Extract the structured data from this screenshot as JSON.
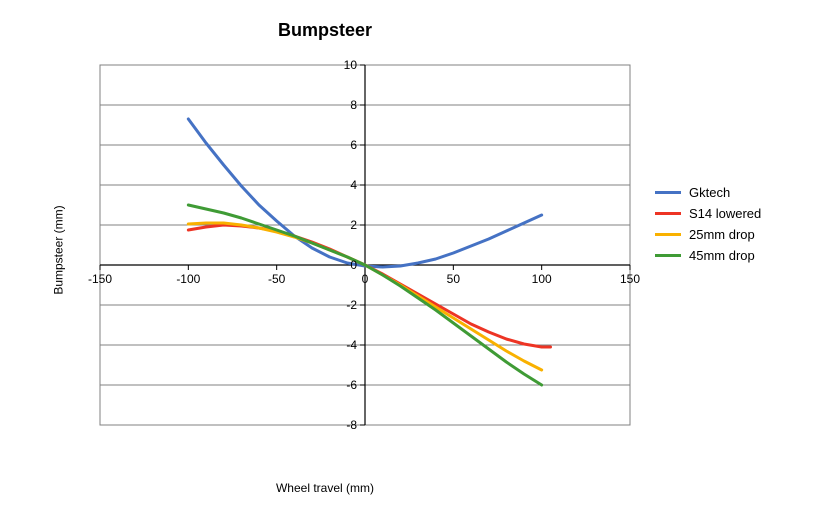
{
  "chart": {
    "type": "line",
    "title": "Bumpsteer",
    "title_fontsize": 18,
    "xlabel": "Wheel travel (mm)",
    "ylabel": "Bumpsteer (mm)",
    "label_fontsize": 12,
    "background_color": "#ffffff",
    "plot_border_color": "#808080",
    "grid_color": "#808080",
    "grid_width": 1,
    "axis_color": "#000000",
    "tick_fontsize": 12,
    "xlim": [
      -150,
      150
    ],
    "ylim": [
      -8,
      10
    ],
    "xticks": [
      -150,
      -100,
      -50,
      0,
      50,
      100,
      150
    ],
    "yticks": [
      -8,
      -6,
      -4,
      -2,
      0,
      2,
      4,
      6,
      8,
      10
    ],
    "line_width": 3,
    "series": [
      {
        "name": "Gktech",
        "color": "#4572c4",
        "points": [
          [
            -100,
            7.3
          ],
          [
            -90,
            6.1
          ],
          [
            -80,
            5.0
          ],
          [
            -70,
            3.95
          ],
          [
            -60,
            3.0
          ],
          [
            -50,
            2.2
          ],
          [
            -40,
            1.45
          ],
          [
            -30,
            0.85
          ],
          [
            -20,
            0.4
          ],
          [
            -10,
            0.1
          ],
          [
            0,
            -0.05
          ],
          [
            10,
            -0.1
          ],
          [
            20,
            -0.05
          ],
          [
            30,
            0.1
          ],
          [
            40,
            0.3
          ],
          [
            50,
            0.6
          ],
          [
            60,
            0.95
          ],
          [
            70,
            1.3
          ],
          [
            80,
            1.7
          ],
          [
            90,
            2.1
          ],
          [
            100,
            2.5
          ]
        ]
      },
      {
        "name": "S14 lowered",
        "color": "#ed3424",
        "points": [
          [
            -100,
            1.75
          ],
          [
            -90,
            1.9
          ],
          [
            -80,
            2.0
          ],
          [
            -70,
            1.95
          ],
          [
            -60,
            1.85
          ],
          [
            -50,
            1.7
          ],
          [
            -40,
            1.45
          ],
          [
            -30,
            1.15
          ],
          [
            -20,
            0.8
          ],
          [
            -10,
            0.4
          ],
          [
            0,
            0.0
          ],
          [
            10,
            -0.45
          ],
          [
            20,
            -0.95
          ],
          [
            30,
            -1.45
          ],
          [
            40,
            -1.95
          ],
          [
            50,
            -2.45
          ],
          [
            60,
            -2.95
          ],
          [
            70,
            -3.35
          ],
          [
            80,
            -3.7
          ],
          [
            90,
            -3.95
          ],
          [
            100,
            -4.1
          ],
          [
            105,
            -4.1
          ]
        ]
      },
      {
        "name": "25mm drop",
        "color": "#f9b100",
        "points": [
          [
            -100,
            2.05
          ],
          [
            -90,
            2.1
          ],
          [
            -80,
            2.1
          ],
          [
            -70,
            2.0
          ],
          [
            -60,
            1.85
          ],
          [
            -50,
            1.65
          ],
          [
            -40,
            1.4
          ],
          [
            -30,
            1.1
          ],
          [
            -20,
            0.75
          ],
          [
            -10,
            0.4
          ],
          [
            0,
            0.0
          ],
          [
            10,
            -0.5
          ],
          [
            20,
            -1.0
          ],
          [
            30,
            -1.55
          ],
          [
            40,
            -2.1
          ],
          [
            50,
            -2.65
          ],
          [
            60,
            -3.2
          ],
          [
            70,
            -3.75
          ],
          [
            80,
            -4.3
          ],
          [
            90,
            -4.8
          ],
          [
            100,
            -5.25
          ]
        ]
      },
      {
        "name": "45mm drop",
        "color": "#3f9b35",
        "points": [
          [
            -100,
            3.0
          ],
          [
            -90,
            2.8
          ],
          [
            -80,
            2.6
          ],
          [
            -70,
            2.35
          ],
          [
            -60,
            2.05
          ],
          [
            -50,
            1.75
          ],
          [
            -40,
            1.45
          ],
          [
            -30,
            1.1
          ],
          [
            -20,
            0.75
          ],
          [
            -10,
            0.4
          ],
          [
            0,
            0.0
          ],
          [
            10,
            -0.5
          ],
          [
            20,
            -1.05
          ],
          [
            30,
            -1.65
          ],
          [
            40,
            -2.25
          ],
          [
            50,
            -2.9
          ],
          [
            60,
            -3.55
          ],
          [
            70,
            -4.2
          ],
          [
            80,
            -4.85
          ],
          [
            90,
            -5.45
          ],
          [
            100,
            -6.0
          ]
        ]
      }
    ],
    "legend": {
      "position": "right",
      "fontsize": 13
    }
  }
}
